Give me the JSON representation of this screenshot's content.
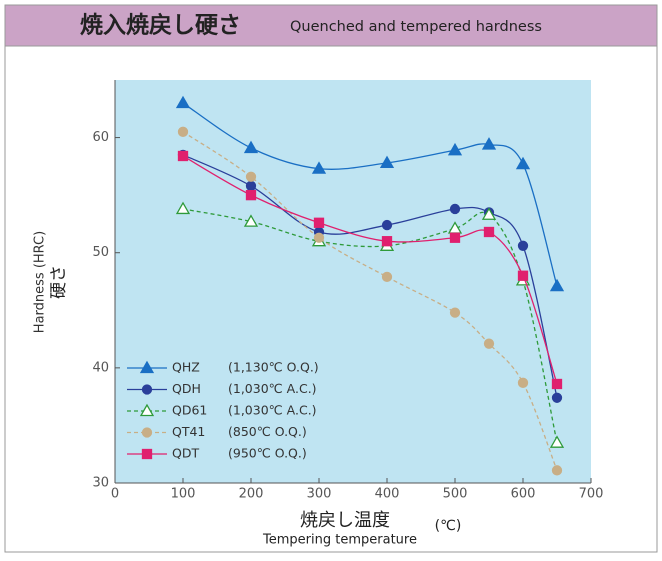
{
  "chart_data": {
    "type": "line",
    "title": "焼入焼戻し硬さ",
    "subtitle": "Quenched and tempered hardness",
    "y_label": "Hardness (HRC)",
    "y_label_ja": "硬さ",
    "x_label_ja": "焼戻し温度",
    "x_label": "Tempering temperature",
    "x_unit": "(℃)",
    "x": [
      100,
      200,
      300,
      400,
      500,
      550,
      600,
      650
    ],
    "xlim": [
      0,
      700
    ],
    "xticks": [
      0,
      100,
      200,
      300,
      400,
      500,
      600,
      700
    ],
    "ylim": [
      30,
      65
    ],
    "yticks": [
      30,
      40,
      50,
      60
    ],
    "grid": false,
    "legend": "lower left",
    "series": [
      {
        "name": "QHZ",
        "condition": "(1,130℃ O.Q.)",
        "color": "#1a6fc4",
        "marker": "triangle",
        "filled": true,
        "dashed": false,
        "values": [
          63.0,
          59.1,
          57.3,
          57.8,
          58.9,
          59.4,
          57.7,
          47.1
        ]
      },
      {
        "name": "QDH",
        "condition": "(1,030℃ A.C.)",
        "color": "#2a3f9a",
        "marker": "circle",
        "filled": true,
        "dashed": false,
        "values": [
          58.5,
          55.8,
          51.8,
          52.4,
          53.8,
          53.5,
          50.6,
          37.4
        ]
      },
      {
        "name": "QD61",
        "condition": "(1,030℃ A.C.)",
        "color": "#2e9a3a",
        "marker": "triangle",
        "filled": false,
        "dashed": true,
        "values": [
          53.8,
          52.7,
          51.0,
          50.6,
          52.1,
          53.3,
          47.6,
          33.5
        ]
      },
      {
        "name": "QT41",
        "condition": "(850℃ O.Q.)",
        "color": "#c8ae86",
        "marker": "circle",
        "filled": true,
        "dashed": true,
        "values": [
          60.5,
          56.6,
          51.3,
          47.9,
          44.8,
          42.1,
          38.7,
          31.1
        ]
      },
      {
        "name": "QDT",
        "condition": "(950℃ O.Q.)",
        "color": "#e0206e",
        "marker": "square",
        "filled": true,
        "dashed": false,
        "values": [
          58.4,
          55.0,
          52.6,
          51.0,
          51.3,
          51.8,
          48.0,
          38.6
        ]
      }
    ]
  }
}
